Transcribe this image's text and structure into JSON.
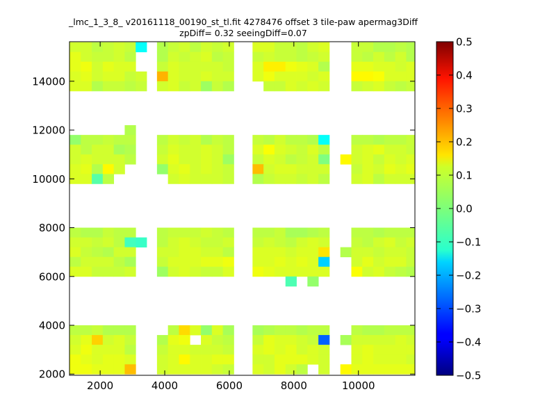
{
  "title": "_lmc_1_3_8_ v20161118_00190_st_tl.fit 4278476 offset 3 tile-paw apermag3Diff",
  "subtitle": "zpDiff= 0.32 seeingDiff=0.07",
  "chart_data": {
    "type": "heatmap",
    "title": "_lmc_1_3_8_ v20161118_00190_st_tl.fit 4278476 offset 3 tile-paw apermag3Diff",
    "subtitle": "zpDiff= 0.32 seeingDiff=0.07",
    "xlim": [
      1050,
      11750
    ],
    "ylim": [
      1950,
      15620
    ],
    "x_ticks": [
      2000,
      4000,
      6000,
      8000,
      10000
    ],
    "y_ticks": [
      2000,
      4000,
      6000,
      8000,
      10000,
      12000,
      14000
    ],
    "colorbar": {
      "min": -0.5,
      "max": 0.5,
      "ticks": [
        -0.5,
        -0.4,
        -0.3,
        -0.2,
        -0.1,
        0.0,
        0.1,
        0.2,
        0.3,
        0.4,
        0.5
      ],
      "colormap": "jet"
    },
    "cell_size": [
      340,
      400
    ],
    "x_columns": [
      1230,
      1570,
      1910,
      2250,
      2590,
      2930,
      3270,
      3930,
      4270,
      4610,
      4950,
      5290,
      5630,
      5970,
      6890,
      7230,
      7570,
      7910,
      8250,
      8590,
      8930,
      9270,
      9610,
      9950,
      10290,
      10630,
      10970,
      11310,
      11650
    ],
    "x_column_labels": [
      "1230",
      "1570",
      "1910",
      "2250",
      "2590",
      "2930",
      "3270",
      "3930",
      "4270",
      "4610",
      "4950",
      "5290",
      "5630",
      "5970",
      "6890",
      "7230",
      "7570",
      "7910",
      "8250",
      "8590",
      "8930",
      "9270",
      "9610",
      "9950",
      "10290",
      "10630",
      "10970",
      "11310",
      "11650"
    ],
    "rows": [
      {
        "y": 15400,
        "values": [
          0.08,
          0.08,
          0.06,
          0.07,
          0.08,
          0.07,
          -0.12,
          0.05,
          0.07,
          0.08,
          0.06,
          0.08,
          0.07,
          0.08,
          0.09,
          0.09,
          0.07,
          0.07,
          0.06,
          0.08,
          0.09,
          null,
          null,
          0.07,
          0.07,
          0.05,
          0.05,
          0.06,
          0.05
        ]
      },
      {
        "y": 15000,
        "values": [
          0.1,
          0.08,
          0.07,
          0.07,
          0.08,
          0.06,
          null,
          0.05,
          0.08,
          0.07,
          0.08,
          0.09,
          0.06,
          0.07,
          0.07,
          0.08,
          0.07,
          0.07,
          0.06,
          0.07,
          0.08,
          null,
          null,
          0.07,
          0.06,
          0.08,
          0.06,
          0.08,
          0.05
        ]
      },
      {
        "y": 14600,
        "values": [
          0.1,
          0.11,
          0.08,
          0.1,
          0.09,
          0.09,
          null,
          0.07,
          0.09,
          0.08,
          0.08,
          0.08,
          0.08,
          0.07,
          0.09,
          0.14,
          0.14,
          0.11,
          0.1,
          0.09,
          0.05,
          null,
          null,
          0.1,
          0.1,
          0.09,
          0.09,
          0.08,
          0.09
        ]
      },
      {
        "y": 14200,
        "values": [
          0.09,
          0.1,
          0.08,
          0.09,
          0.09,
          0.07,
          0.08,
          0.2,
          0.09,
          0.08,
          0.08,
          0.09,
          0.08,
          0.08,
          0.09,
          0.11,
          0.09,
          0.09,
          0.09,
          0.08,
          0.09,
          null,
          null,
          0.13,
          0.13,
          0.12,
          0.09,
          0.09,
          0.09
        ]
      },
      {
        "y": 13800,
        "values": [
          0.09,
          0.09,
          0.05,
          0.07,
          0.07,
          0.06,
          0.07,
          0.08,
          0.09,
          0.07,
          0.08,
          0.03,
          0.07,
          0.05,
          null,
          0.07,
          0.07,
          0.09,
          0.08,
          0.09,
          0.08,
          null,
          null,
          0.07,
          0.08,
          0.09,
          0.07,
          0.06,
          0.07
        ]
      },
      {
        "y": 12000,
        "values": [
          null,
          null,
          null,
          null,
          null,
          0.05,
          null,
          null,
          null,
          null,
          null,
          null,
          null,
          null,
          null,
          null,
          null,
          null,
          null,
          null,
          null,
          null,
          null,
          null,
          null,
          null,
          null,
          null,
          null
        ]
      },
      {
        "y": 11600,
        "values": [
          0.02,
          0.06,
          0.06,
          0.07,
          0.06,
          0.06,
          null,
          0.06,
          0.08,
          0.07,
          0.08,
          0.05,
          0.07,
          0.06,
          0.07,
          0.06,
          0.08,
          0.06,
          0.06,
          0.05,
          -0.12,
          null,
          null,
          0.06,
          0.06,
          0.05,
          0.06,
          0.06,
          0.07
        ]
      },
      {
        "y": 11200,
        "values": [
          0.08,
          0.06,
          0.08,
          0.08,
          0.04,
          0.05,
          null,
          0.07,
          0.09,
          0.08,
          0.08,
          0.09,
          0.08,
          0.06,
          0.09,
          0.12,
          0.09,
          0.08,
          0.07,
          0.09,
          0.06,
          null,
          null,
          0.08,
          0.09,
          0.1,
          0.08,
          0.08,
          0.07
        ]
      },
      {
        "y": 10800,
        "values": [
          0.08,
          0.09,
          0.08,
          0.08,
          0.08,
          0.06,
          null,
          0.08,
          0.1,
          0.08,
          0.08,
          0.09,
          0.08,
          0.03,
          0.07,
          0.09,
          0.08,
          0.06,
          0.07,
          0.08,
          0.0,
          null,
          0.13,
          0.08,
          0.09,
          0.07,
          0.09,
          0.08,
          0.09
        ]
      },
      {
        "y": 10400,
        "values": [
          0.09,
          0.1,
          0.05,
          0.13,
          0.08,
          null,
          null,
          0.02,
          0.09,
          0.1,
          0.08,
          0.09,
          0.08,
          0.07,
          0.19,
          0.08,
          0.09,
          0.09,
          0.08,
          0.08,
          0.08,
          null,
          null,
          0.07,
          0.09,
          0.08,
          0.1,
          0.09,
          0.1
        ]
      },
      {
        "y": 10000,
        "values": [
          0.09,
          0.09,
          -0.04,
          0.06,
          null,
          null,
          null,
          null,
          0.08,
          0.09,
          0.08,
          0.08,
          0.08,
          0.07,
          0.05,
          0.07,
          0.08,
          0.08,
          0.07,
          0.08,
          0.06,
          null,
          null,
          0.08,
          0.09,
          0.06,
          0.08,
          0.08,
          0.08
        ]
      },
      {
        "y": 7800,
        "values": [
          0.06,
          0.05,
          0.05,
          0.07,
          0.06,
          0.06,
          null,
          0.06,
          0.07,
          0.07,
          0.07,
          0.08,
          0.07,
          0.06,
          0.06,
          0.06,
          0.07,
          0.04,
          0.04,
          0.05,
          0.06,
          null,
          null,
          0.06,
          0.06,
          0.05,
          0.06,
          0.06,
          0.06
        ]
      },
      {
        "y": 7400,
        "values": [
          0.08,
          0.08,
          0.07,
          0.08,
          0.06,
          -0.06,
          -0.07,
          0.06,
          0.08,
          0.09,
          0.08,
          0.07,
          0.07,
          0.08,
          0.07,
          0.08,
          0.07,
          0.06,
          0.08,
          0.09,
          0.08,
          null,
          null,
          0.07,
          0.06,
          0.08,
          0.09,
          0.07,
          0.08
        ]
      },
      {
        "y": 7000,
        "values": [
          0.09,
          0.07,
          0.06,
          0.05,
          0.08,
          0.08,
          null,
          0.08,
          0.08,
          0.09,
          0.09,
          0.08,
          0.08,
          0.06,
          0.09,
          0.09,
          0.09,
          0.08,
          0.09,
          0.09,
          0.15,
          null,
          0.05,
          0.08,
          0.08,
          0.07,
          0.08,
          0.08,
          0.07
        ]
      },
      {
        "y": 6600,
        "values": [
          0.06,
          0.08,
          0.08,
          0.08,
          0.06,
          0.04,
          null,
          0.07,
          0.09,
          0.09,
          0.09,
          0.1,
          0.1,
          0.11,
          0.09,
          0.09,
          0.1,
          0.09,
          0.1,
          0.09,
          -0.17,
          null,
          null,
          0.08,
          0.1,
          0.08,
          0.09,
          0.09,
          0.07
        ]
      },
      {
        "y": 6200,
        "values": [
          0.09,
          0.09,
          0.07,
          0.07,
          0.07,
          0.08,
          null,
          0.03,
          0.08,
          0.09,
          0.08,
          0.07,
          0.07,
          0.09,
          0.11,
          0.1,
          0.09,
          0.09,
          0.09,
          0.09,
          0.09,
          null,
          null,
          0.12,
          0.08,
          0.09,
          0.07,
          0.06,
          0.05
        ]
      },
      {
        "y": 5800,
        "values": [
          null,
          null,
          null,
          null,
          null,
          null,
          null,
          null,
          null,
          null,
          null,
          null,
          null,
          null,
          null,
          null,
          null,
          -0.05,
          null,
          0.02,
          null,
          null,
          null,
          null,
          null,
          null,
          null,
          null,
          null
        ]
      },
      {
        "y": 3800,
        "values": [
          0.06,
          0.06,
          0.07,
          0.05,
          0.05,
          0.05,
          null,
          null,
          0.06,
          0.16,
          0.09,
          0.02,
          0.09,
          0.04,
          0.04,
          0.05,
          0.06,
          0.06,
          0.05,
          0.06,
          0.06,
          null,
          null,
          0.06,
          0.05,
          0.05,
          0.06,
          0.06,
          0.06
        ]
      },
      {
        "y": 3400,
        "values": [
          0.08,
          0.1,
          0.17,
          0.08,
          0.09,
          0.07,
          null,
          0.05,
          0.1,
          0.11,
          null,
          0.09,
          0.07,
          0.06,
          0.07,
          0.1,
          0.09,
          0.09,
          0.08,
          0.07,
          -0.28,
          null,
          0.04,
          0.08,
          0.08,
          0.08,
          0.08,
          0.09,
          0.08
        ]
      },
      {
        "y": 3000,
        "values": [
          0.09,
          0.11,
          0.09,
          0.09,
          0.09,
          0.06,
          null,
          0.07,
          0.09,
          0.09,
          0.08,
          0.08,
          0.08,
          0.07,
          0.09,
          0.1,
          0.09,
          0.1,
          0.08,
          0.09,
          0.08,
          null,
          null,
          0.09,
          0.1,
          0.09,
          0.09,
          0.09,
          0.09
        ]
      },
      {
        "y": 2600,
        "values": [
          0.11,
          0.1,
          0.09,
          0.1,
          0.1,
          0.09,
          null,
          0.08,
          0.09,
          0.13,
          0.09,
          0.09,
          0.1,
          0.1,
          0.08,
          0.08,
          0.1,
          0.1,
          0.1,
          0.09,
          0.08,
          null,
          null,
          0.09,
          0.1,
          0.09,
          0.09,
          0.09,
          0.08
        ]
      },
      {
        "y": 2200,
        "values": [
          0.11,
          0.11,
          0.1,
          0.1,
          0.1,
          0.19,
          null,
          0.08,
          0.09,
          0.09,
          0.09,
          0.09,
          0.08,
          0.07,
          0.09,
          0.08,
          0.1,
          0.08,
          0.06,
          null,
          0.08,
          null,
          0.13,
          0.1,
          0.1,
          0.1,
          0.1,
          0.1,
          0.1
        ]
      }
    ]
  }
}
